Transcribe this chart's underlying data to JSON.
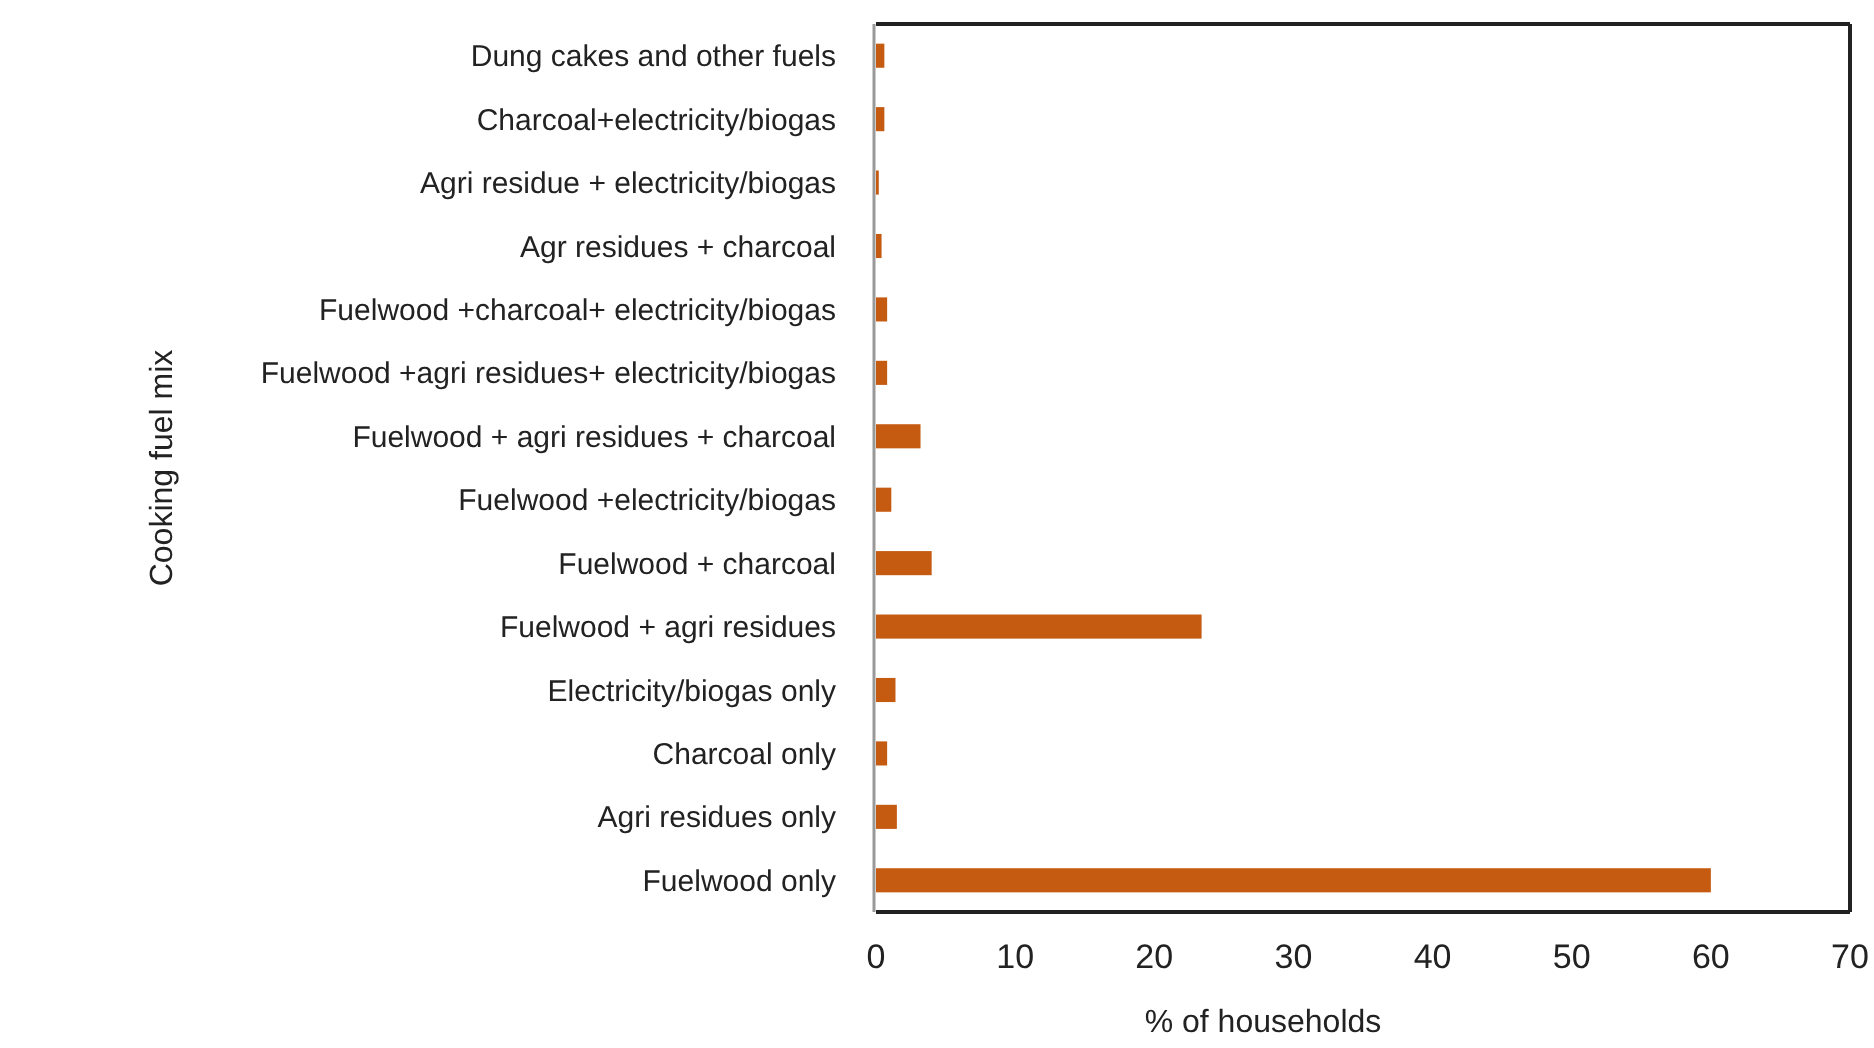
{
  "chart_data": {
    "type": "bar",
    "orientation": "horizontal",
    "xlabel": "% of households",
    "ylabel": "Cooking fuel mix",
    "categories": [
      "Dung cakes and other fuels",
      "Charcoal+electricity/biogas",
      "Agri residue + electricity/biogas",
      "Agr residues + charcoal",
      "Fuelwood +charcoal+ electricity/biogas",
      "Fuelwood +agri residues+ electricity/biogas",
      "Fuelwood + agri residues + charcoal",
      "Fuelwood +electricity/biogas",
      "Fuelwood + charcoal",
      "Fuelwood + agri residues",
      "Electricity/biogas only",
      "Charcoal only",
      "Agri residues only",
      "Fuelwood only"
    ],
    "values": [
      0.6,
      0.6,
      0.2,
      0.4,
      0.8,
      0.8,
      3.2,
      1.1,
      4.0,
      23.4,
      1.4,
      0.8,
      1.5,
      60.0
    ],
    "color": "#c55a11",
    "xlim": [
      0,
      70
    ],
    "xticks": [
      0,
      10,
      20,
      30,
      40,
      50,
      60,
      70
    ],
    "grid": false
  }
}
